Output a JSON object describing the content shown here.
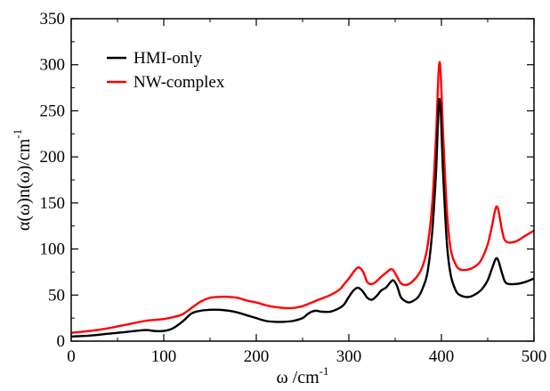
{
  "chart_data": {
    "type": "line",
    "title": "",
    "xlabel": "ω /cm",
    "xlabel_sup": "-1",
    "ylabel": "α(ω)n(ω)/cm",
    "ylabel_sup": "-1",
    "xlim": [
      0,
      500
    ],
    "ylim": [
      0,
      350
    ],
    "xticks": [
      "0",
      "100",
      "200",
      "300",
      "400",
      "500"
    ],
    "yticks": [
      "0",
      "50",
      "100",
      "150",
      "200",
      "250",
      "300",
      "350"
    ],
    "grid": false,
    "legend_position": "top-left",
    "series": [
      {
        "name": "HMI-only",
        "color": "#000000",
        "x": [
          0,
          20,
          40,
          60,
          80,
          90,
          100,
          110,
          120,
          130,
          140,
          150,
          160,
          170,
          180,
          190,
          200,
          210,
          220,
          230,
          240,
          250,
          255,
          260,
          265,
          270,
          280,
          290,
          295,
          300,
          305,
          310,
          315,
          320,
          325,
          330,
          335,
          340,
          345,
          348,
          352,
          356,
          360,
          365,
          370,
          375,
          380,
          385,
          390,
          394,
          398,
          402,
          406,
          410,
          415,
          420,
          430,
          440,
          445,
          450,
          454,
          458,
          460,
          462,
          466,
          470,
          480,
          490,
          500
        ],
        "y": [
          5,
          6,
          8,
          10,
          12,
          11,
          11,
          14,
          21,
          30,
          33,
          34,
          34,
          33,
          31,
          28,
          25,
          22,
          21,
          21,
          22,
          25,
          29,
          32,
          33,
          32,
          32,
          36,
          40,
          48,
          55,
          58,
          54,
          47,
          45,
          49,
          55,
          58,
          64,
          66,
          60,
          48,
          44,
          42,
          44,
          48,
          58,
          75,
          118,
          180,
          263,
          178,
          105,
          72,
          56,
          50,
          48,
          53,
          58,
          66,
          77,
          88,
          90,
          86,
          72,
          63,
          62,
          64,
          68
        ]
      },
      {
        "name": "NW-complex",
        "color": "#ff0000",
        "x": [
          0,
          20,
          40,
          60,
          80,
          90,
          100,
          110,
          120,
          130,
          140,
          150,
          160,
          170,
          180,
          190,
          200,
          210,
          220,
          230,
          240,
          250,
          260,
          270,
          280,
          290,
          295,
          300,
          305,
          310,
          315,
          320,
          325,
          330,
          335,
          340,
          345,
          348,
          352,
          356,
          360,
          365,
          370,
          375,
          380,
          385,
          390,
          394,
          398,
          402,
          406,
          410,
          415,
          420,
          430,
          440,
          445,
          450,
          454,
          458,
          460,
          462,
          466,
          470,
          480,
          490,
          500
        ],
        "y": [
          9,
          11,
          14,
          18,
          22,
          23,
          24,
          26,
          29,
          36,
          43,
          47,
          48,
          48,
          47,
          44,
          42,
          39,
          37,
          36,
          36,
          38,
          42,
          46,
          50,
          56,
          62,
          68,
          75,
          80,
          76,
          64,
          62,
          65,
          70,
          74,
          78,
          77,
          70,
          63,
          61,
          62,
          66,
          72,
          82,
          103,
          148,
          218,
          303,
          220,
          140,
          100,
          84,
          78,
          78,
          84,
          92,
          105,
          122,
          142,
          146,
          140,
          118,
          108,
          108,
          114,
          120
        ]
      }
    ]
  }
}
